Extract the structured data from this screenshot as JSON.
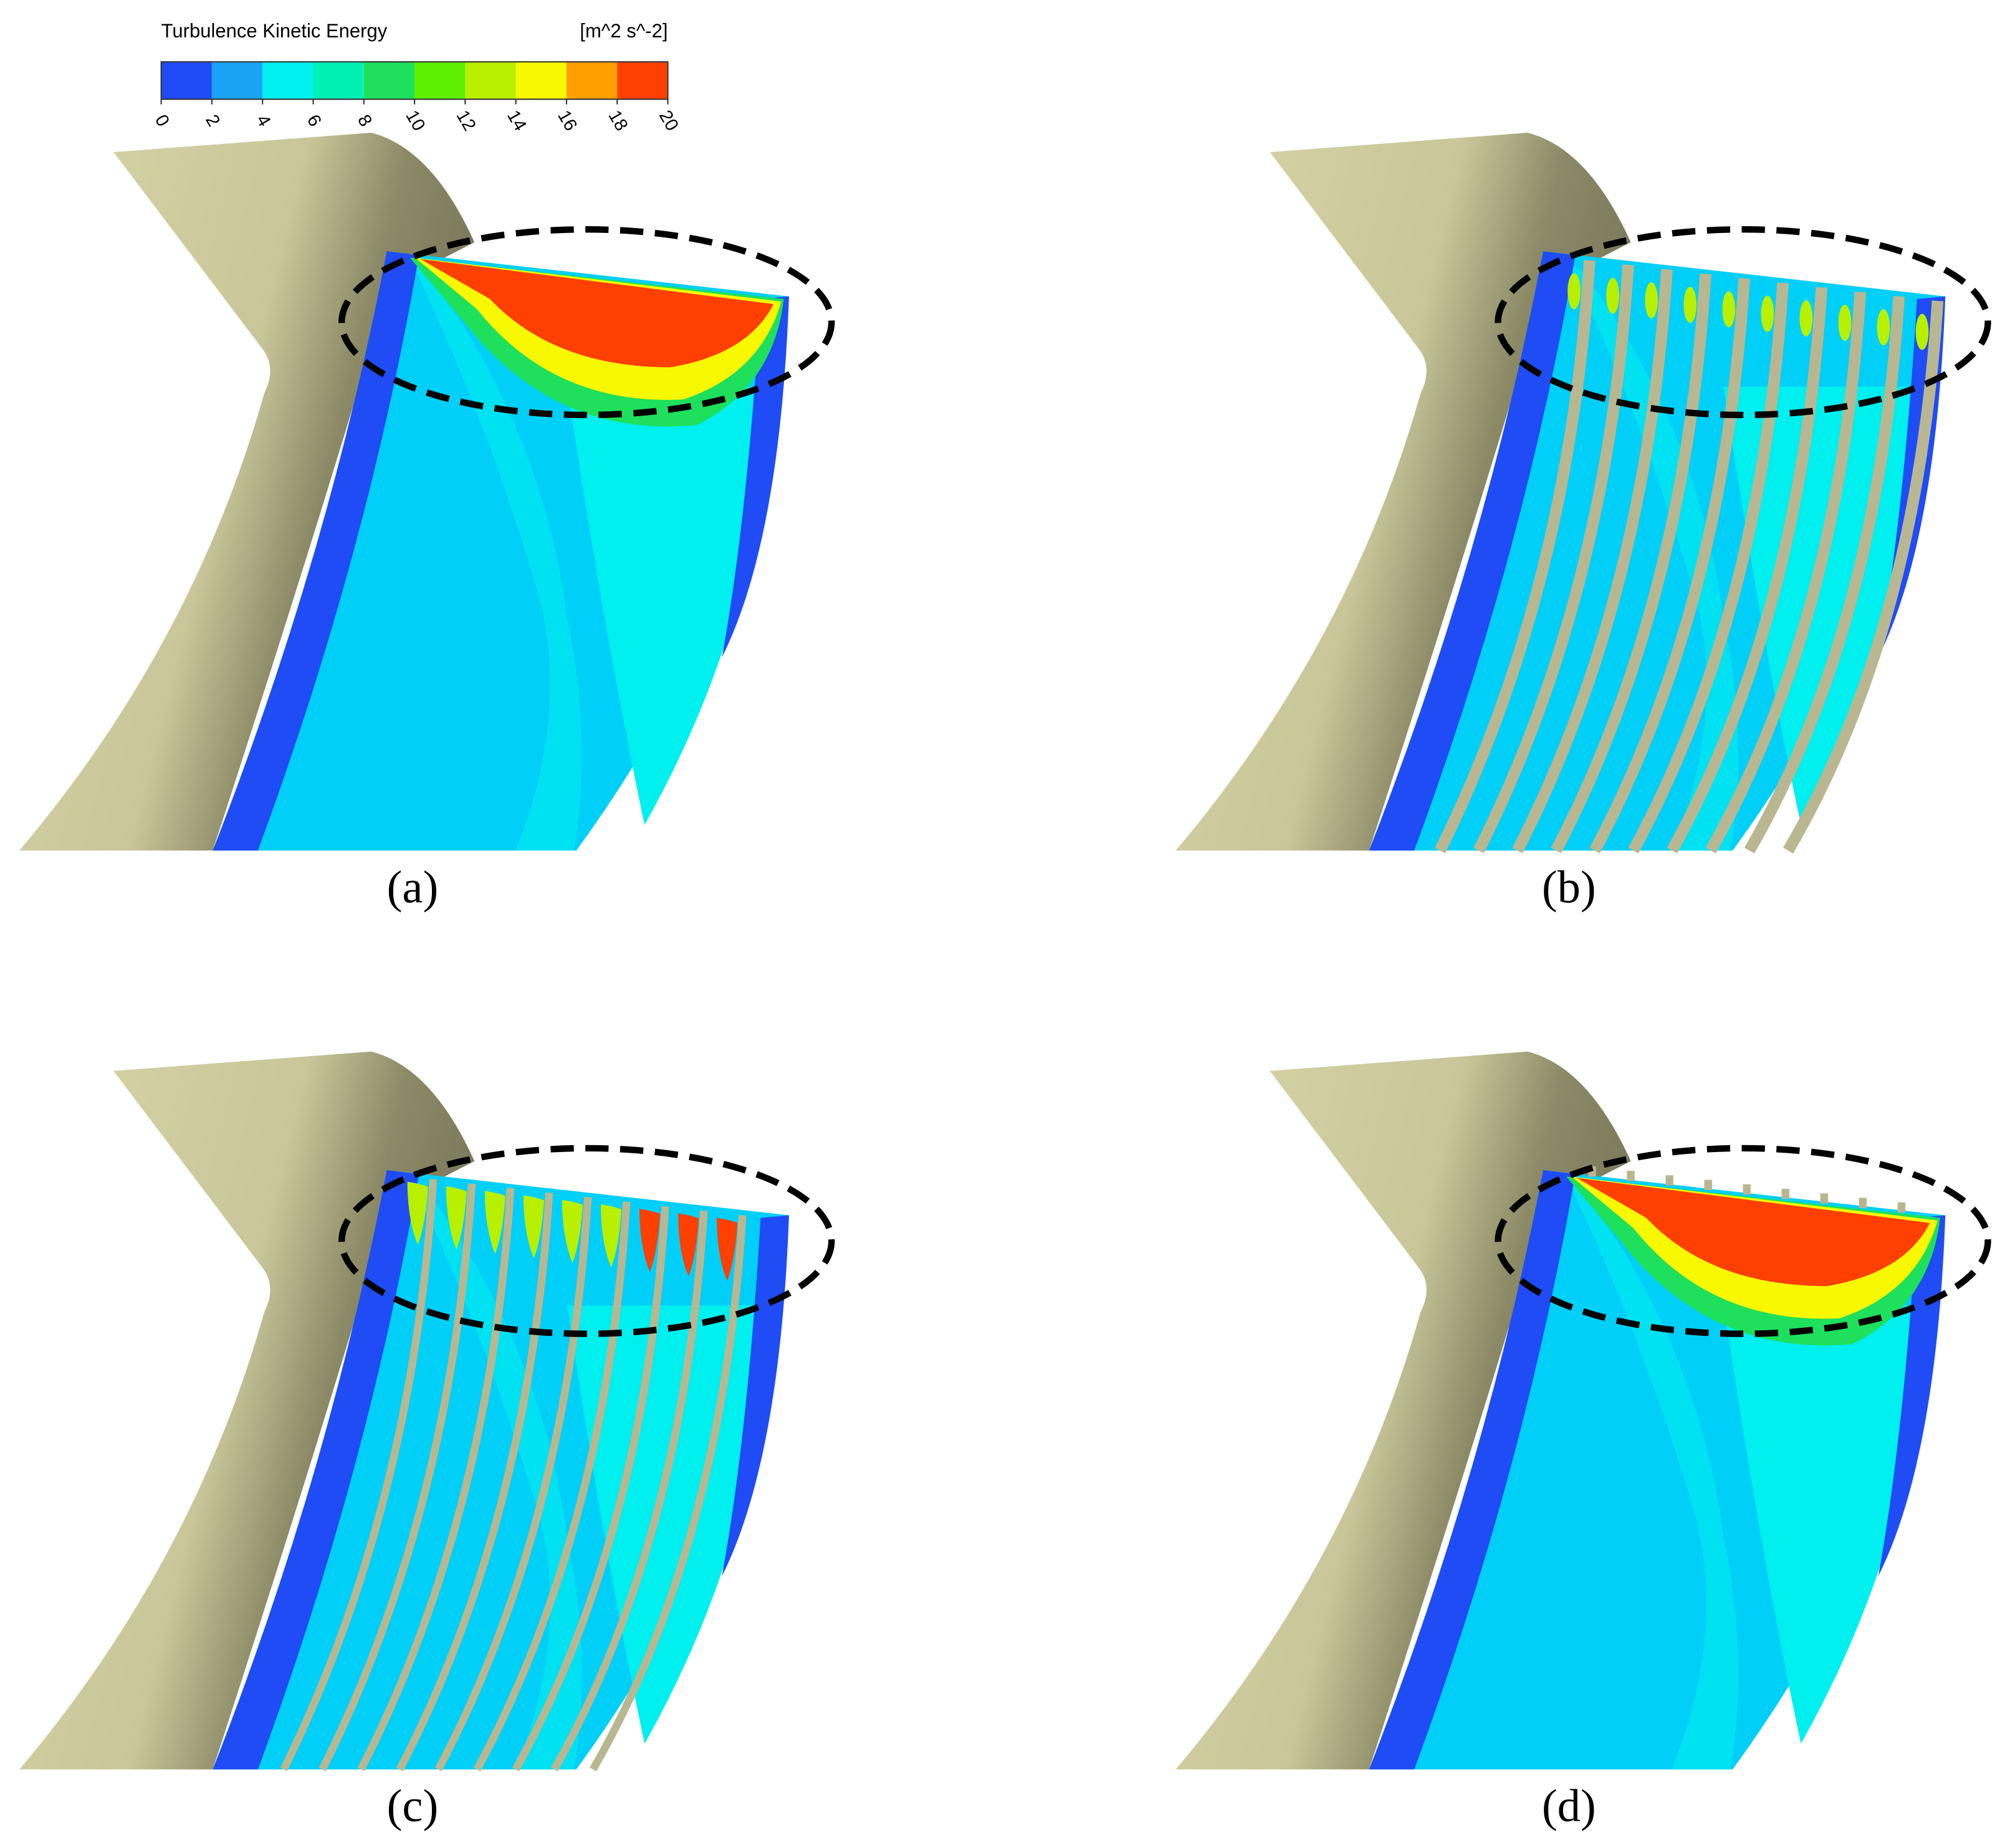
{
  "legend": {
    "title": "Turbulence Kinetic Energy",
    "unit": "[m^2 s^-2]",
    "ticks": [
      0,
      2,
      4,
      6,
      8,
      10,
      12,
      14,
      16,
      18,
      20
    ],
    "colors": [
      "#1f4cf5",
      "#1aa3f5",
      "#00f0f0",
      "#00f0b4",
      "#1ee05c",
      "#5ef000",
      "#b8f000",
      "#f8f800",
      "#ffa000",
      "#ff4000"
    ]
  },
  "panels": [
    {
      "label": "(a)"
    },
    {
      "label": "(b)"
    },
    {
      "label": "(c)"
    },
    {
      "label": "(d)"
    }
  ]
}
